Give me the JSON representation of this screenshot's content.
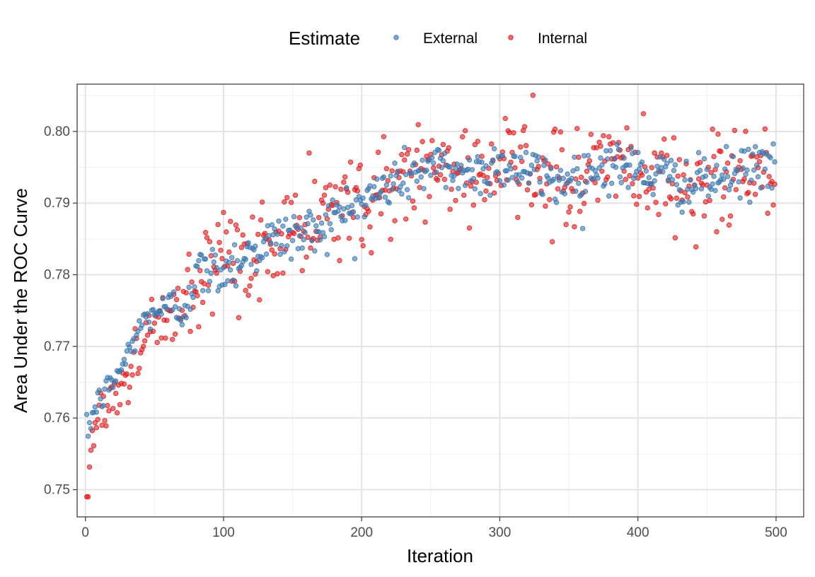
{
  "chart_data": {
    "type": "scatter",
    "title": "",
    "xlabel": "Iteration",
    "ylabel": "Area Under the ROC Curve",
    "xlim": [
      -6,
      520
    ],
    "ylim": [
      0.7462,
      0.8066
    ],
    "x_ticks": [
      0,
      100,
      200,
      300,
      400,
      500
    ],
    "x_minor_ticks": [
      50,
      150,
      250,
      350,
      450
    ],
    "y_ticks": [
      0.75,
      0.76,
      0.77,
      0.78,
      0.79,
      0.8
    ],
    "y_tick_labels": [
      "0.75",
      "0.76",
      "0.77",
      "0.78",
      "0.79",
      "0.80"
    ],
    "y_minor_ticks": [
      0.755,
      0.765,
      0.775,
      0.785,
      0.795,
      0.805
    ],
    "legend": {
      "title": "Estimate",
      "position": "top",
      "entries": [
        "External",
        "Internal"
      ]
    },
    "grid": true,
    "series": [
      {
        "name": "External",
        "color": "#3b78b0",
        "trend_anchors": [
          [
            1,
            0.7575
          ],
          [
            5,
            0.7605
          ],
          [
            10,
            0.7625
          ],
          [
            20,
            0.765
          ],
          [
            30,
            0.7685
          ],
          [
            40,
            0.773
          ],
          [
            50,
            0.775
          ],
          [
            60,
            0.7752
          ],
          [
            70,
            0.7752
          ],
          [
            80,
            0.78
          ],
          [
            100,
            0.7808
          ],
          [
            120,
            0.7832
          ],
          [
            140,
            0.7852
          ],
          [
            160,
            0.7858
          ],
          [
            180,
            0.788
          ],
          [
            200,
            0.79
          ],
          [
            220,
            0.7925
          ],
          [
            240,
            0.7945
          ],
          [
            260,
            0.795
          ],
          [
            280,
            0.794
          ],
          [
            300,
            0.7955
          ],
          [
            320,
            0.7945
          ],
          [
            340,
            0.793
          ],
          [
            360,
            0.794
          ],
          [
            380,
            0.7955
          ],
          [
            400,
            0.7945
          ],
          [
            420,
            0.7935
          ],
          [
            440,
            0.7925
          ],
          [
            460,
            0.7935
          ],
          [
            480,
            0.7945
          ],
          [
            499,
            0.7962
          ]
        ],
        "spread": 0.0018,
        "count": 499
      },
      {
        "name": "Internal",
        "color": "#e41a1c",
        "trend_anchors": [
          [
            1,
            0.749
          ],
          [
            5,
            0.758
          ],
          [
            10,
            0.7605
          ],
          [
            20,
            0.763
          ],
          [
            30,
            0.766
          ],
          [
            40,
            0.77
          ],
          [
            50,
            0.7735
          ],
          [
            60,
            0.7745
          ],
          [
            70,
            0.7745
          ],
          [
            80,
            0.777
          ],
          [
            100,
            0.7805
          ],
          [
            120,
            0.783
          ],
          [
            140,
            0.7852
          ],
          [
            160,
            0.786
          ],
          [
            180,
            0.7888
          ],
          [
            200,
            0.7905
          ],
          [
            220,
            0.7928
          ],
          [
            240,
            0.7945
          ],
          [
            260,
            0.7945
          ],
          [
            280,
            0.795
          ],
          [
            300,
            0.795
          ],
          [
            320,
            0.7945
          ],
          [
            340,
            0.793
          ],
          [
            360,
            0.794
          ],
          [
            380,
            0.7955
          ],
          [
            400,
            0.7945
          ],
          [
            420,
            0.7935
          ],
          [
            440,
            0.7925
          ],
          [
            460,
            0.7935
          ],
          [
            480,
            0.794
          ],
          [
            499,
            0.793
          ]
        ],
        "spread": 0.0035,
        "count": 499
      }
    ]
  }
}
